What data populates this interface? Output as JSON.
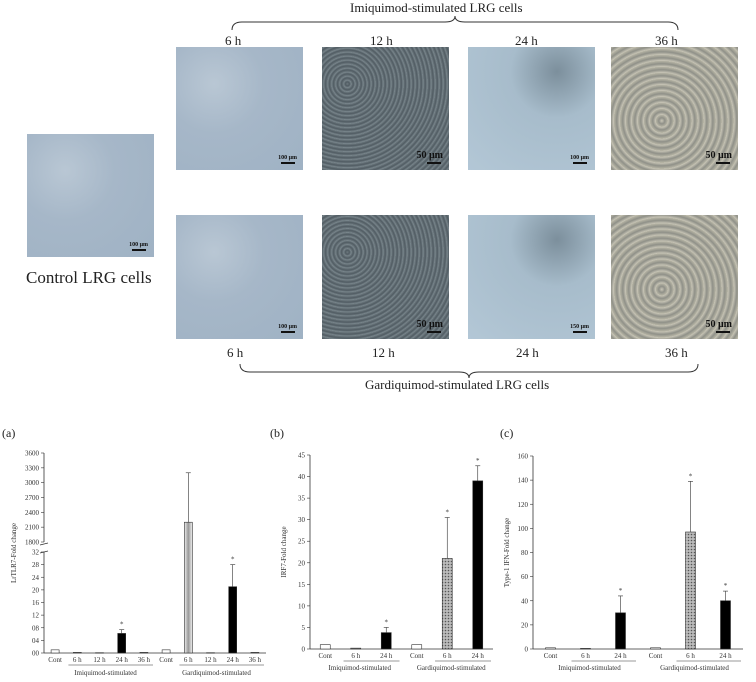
{
  "figure": {
    "top_group_label": "Imiquimod-stimulated LRG cells",
    "bottom_group_label": "Gardiquimod-stimulated LRG cells",
    "control_label": "Control LRG cells",
    "time_labels": [
      "6 h",
      "12 h",
      "24 h",
      "36 h"
    ],
    "scale_small": "100 μm",
    "scale_big": "50 μm",
    "scale_150": "150 μm"
  },
  "chart_data": [
    {
      "type": "bar",
      "panel": "(a)",
      "ylabel": "LrTLR7-Fold change",
      "yticks_lower": [
        "00",
        "04",
        "08",
        "12",
        "16",
        "20",
        "24",
        "28",
        "32"
      ],
      "yticks_upper": [
        "1800",
        "2100",
        "2400",
        "2700",
        "3000",
        "3300",
        "3600"
      ],
      "ylim_lower": [
        0,
        32
      ],
      "ylim_upper": [
        1800,
        3600
      ],
      "categories": [
        "Cont",
        "6 h",
        "12 h",
        "24 h",
        "36 h",
        "Cont",
        "6 h",
        "12 h",
        "24 h",
        "36 h"
      ],
      "values": [
        1,
        0.2,
        0.1,
        6.2,
        0.2,
        1,
        2200,
        0.1,
        21,
        0.2
      ],
      "errors": [
        0,
        0,
        0,
        1.2,
        0,
        0,
        1000,
        0,
        7,
        0
      ],
      "significant": [
        false,
        false,
        false,
        true,
        false,
        false,
        false,
        false,
        true,
        false
      ],
      "groups": [
        "Imiquimod-stimulated",
        "Gardiquimod-stimulated"
      ]
    },
    {
      "type": "bar",
      "panel": "(b)",
      "ylabel": "IRF7-Fold change",
      "yticks": [
        "0",
        "5",
        "10",
        "15",
        "20",
        "25",
        "30",
        "35",
        "40",
        "45"
      ],
      "ylim": [
        0,
        45
      ],
      "categories": [
        "Cont",
        "6 h",
        "24 h",
        "Cont",
        "6 h",
        "24 h"
      ],
      "values": [
        1,
        0.2,
        3.8,
        1,
        21,
        39
      ],
      "errors": [
        0,
        0,
        1.2,
        0,
        9.5,
        3.5
      ],
      "significant": [
        false,
        false,
        true,
        false,
        true,
        true
      ],
      "groups": [
        "Imiquimod-stimulated",
        "Gardiquimod-stimulated"
      ]
    },
    {
      "type": "bar",
      "panel": "(c)",
      "ylabel": "Type-1 IFN-Fold change",
      "yticks": [
        "0",
        "20",
        "40",
        "60",
        "80",
        "100",
        "120",
        "140",
        "160"
      ],
      "ylim": [
        0,
        160
      ],
      "categories": [
        "Cont",
        "6 h",
        "24 h",
        "Cont",
        "6 h",
        "24 h"
      ],
      "values": [
        1,
        0.5,
        30,
        1,
        97,
        40
      ],
      "errors": [
        0,
        0,
        14,
        0,
        42,
        8
      ],
      "significant": [
        false,
        false,
        true,
        false,
        true,
        true
      ],
      "groups": [
        "Imiquimod-stimulated",
        "Gardiquimod-stimulated"
      ]
    }
  ]
}
